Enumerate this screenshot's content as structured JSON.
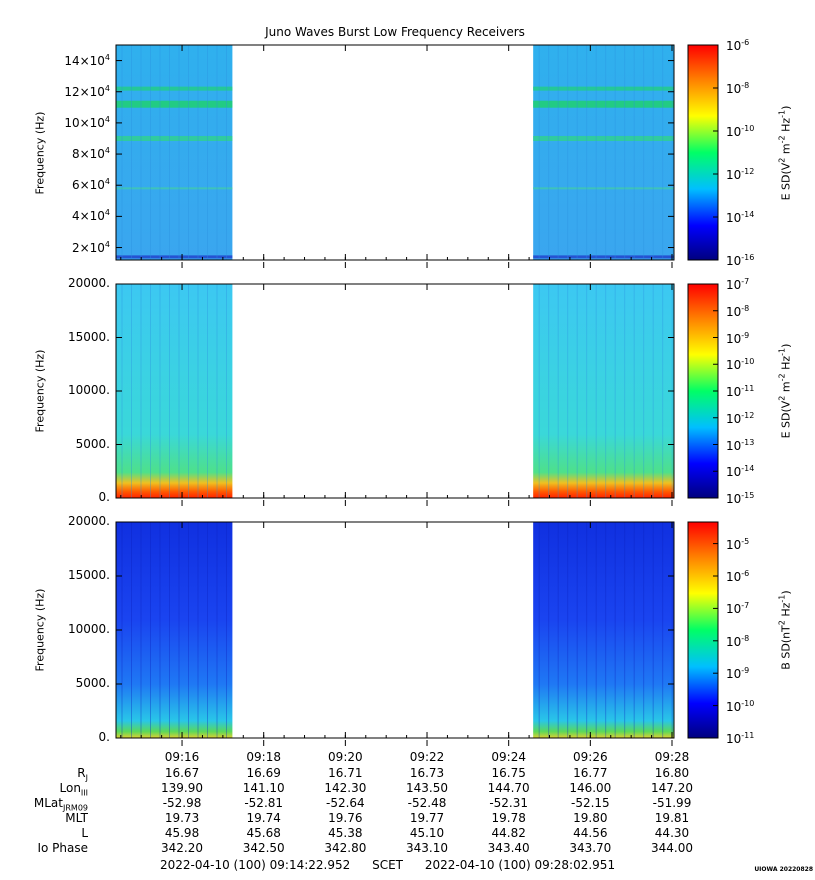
{
  "title": "Juno Waves Burst Low Frequency Receivers",
  "panels": [
    {
      "id": "panel-1",
      "ylabel": "Frequency (Hz)",
      "yticks": [
        {
          "mant": "2×10",
          "exp": "4",
          "v": 20000
        },
        {
          "mant": "4×10",
          "exp": "4",
          "v": 40000
        },
        {
          "mant": "6×10",
          "exp": "4",
          "v": 60000
        },
        {
          "mant": "8×10",
          "exp": "4",
          "v": 80000
        },
        {
          "mant": "10×10",
          "exp": "4",
          "v": 100000
        },
        {
          "mant": "12×10",
          "exp": "4",
          "v": 120000
        },
        {
          "mant": "14×10",
          "exp": "4",
          "v": 140000
        }
      ],
      "ylim": [
        12000,
        150000
      ],
      "colorbar": {
        "label": "E SD(V",
        "label_sup1": "2",
        "label_mid": " m",
        "label_sup2": "-2",
        "label_mid2": " Hz",
        "label_sup3": "-1",
        "label_end": ")",
        "ticks": [
          {
            "base": "10",
            "exp": "-6",
            "frac": 0.0
          },
          {
            "base": "10",
            "exp": "-8",
            "frac": 0.2
          },
          {
            "base": "10",
            "exp": "-10",
            "frac": 0.4
          },
          {
            "base": "10",
            "exp": "-12",
            "frac": 0.6
          },
          {
            "base": "10",
            "exp": "-14",
            "frac": 0.8
          },
          {
            "base": "10",
            "exp": "-16",
            "frac": 1.0
          }
        ]
      }
    },
    {
      "id": "panel-2",
      "ylabel": "Frequency (Hz)",
      "yticks": [
        {
          "label": "0.",
          "v": 0
        },
        {
          "label": "5000.",
          "v": 5000
        },
        {
          "label": "10000.",
          "v": 10000
        },
        {
          "label": "15000.",
          "v": 15000
        },
        {
          "label": "20000.",
          "v": 20000
        }
      ],
      "ylim": [
        0,
        20000
      ],
      "colorbar": {
        "label": "E SD(V",
        "label_sup1": "2",
        "label_mid": " m",
        "label_sup2": "-2",
        "label_mid2": " Hz",
        "label_sup3": "-1",
        "label_end": ")",
        "ticks": [
          {
            "base": "10",
            "exp": "-7",
            "frac": 0.0
          },
          {
            "base": "10",
            "exp": "-8",
            "frac": 0.125
          },
          {
            "base": "10",
            "exp": "-9",
            "frac": 0.25
          },
          {
            "base": "10",
            "exp": "-10",
            "frac": 0.375
          },
          {
            "base": "10",
            "exp": "-11",
            "frac": 0.5
          },
          {
            "base": "10",
            "exp": "-12",
            "frac": 0.625
          },
          {
            "base": "10",
            "exp": "-13",
            "frac": 0.75
          },
          {
            "base": "10",
            "exp": "-14",
            "frac": 0.875
          },
          {
            "base": "10",
            "exp": "-15",
            "frac": 1.0
          }
        ]
      }
    },
    {
      "id": "panel-3",
      "ylabel": "Frequency (Hz)",
      "yticks": [
        {
          "label": "0.",
          "v": 0
        },
        {
          "label": "5000.",
          "v": 5000
        },
        {
          "label": "10000.",
          "v": 10000
        },
        {
          "label": "15000.",
          "v": 15000
        },
        {
          "label": "20000.",
          "v": 20000
        }
      ],
      "ylim": [
        0,
        20000
      ],
      "colorbar": {
        "label": "B SD(nT",
        "label_sup1": "2",
        "label_mid": " Hz",
        "label_sup2": "-1",
        "label_mid2": "",
        "label_sup3": "",
        "label_end": ")",
        "ticks": [
          {
            "base": "10",
            "exp": "-5",
            "frac": 0.1
          },
          {
            "base": "10",
            "exp": "-6",
            "frac": 0.25
          },
          {
            "base": "10",
            "exp": "-7",
            "frac": 0.4
          },
          {
            "base": "10",
            "exp": "-8",
            "frac": 0.55
          },
          {
            "base": "10",
            "exp": "-9",
            "frac": 0.7
          },
          {
            "base": "10",
            "exp": "-10",
            "frac": 0.85
          },
          {
            "base": "10",
            "exp": "-11",
            "frac": 1.0
          }
        ]
      }
    }
  ],
  "chart_data": {
    "type": "heatmap",
    "title": "Juno Waves Burst Low Frequency Receivers",
    "ylabel": "Frequency (Hz)",
    "time_start": "09:14:22.952",
    "time_end": "09:28:02.951",
    "xticks": [
      "09:16",
      "09:18",
      "09:20",
      "09:22",
      "09:24",
      "09:26",
      "09:28"
    ],
    "data_intervals": [
      [
        "09:14:22.952",
        "09:17:14"
      ],
      [
        "09:24:36",
        "09:28:02.951"
      ]
    ],
    "colormap": [
      "#00007f",
      "#0000ff",
      "#00bfff",
      "#00ff66",
      "#ffff00",
      "#ff7f00",
      "#ff0000"
    ]
  },
  "ephemeris": {
    "labels": [
      {
        "name": "R",
        "sub": "J"
      },
      {
        "name": "Lon",
        "sub": "III"
      },
      {
        "name": "MLat",
        "sub": "JRM09"
      },
      {
        "name": "MLT",
        "sub": ""
      },
      {
        "name": "L",
        "sub": ""
      },
      {
        "name": "Io Phase",
        "sub": ""
      }
    ],
    "columns": [
      {
        "time": "09:16",
        "vals": [
          "16.67",
          "139.90",
          "-52.98",
          "19.73",
          "45.98",
          "342.20"
        ]
      },
      {
        "time": "09:18",
        "vals": [
          "16.69",
          "141.10",
          "-52.81",
          "19.74",
          "45.68",
          "342.50"
        ]
      },
      {
        "time": "09:20",
        "vals": [
          "16.71",
          "142.30",
          "-52.64",
          "19.76",
          "45.38",
          "342.80"
        ]
      },
      {
        "time": "09:22",
        "vals": [
          "16.73",
          "143.50",
          "-52.48",
          "19.77",
          "45.10",
          "343.10"
        ]
      },
      {
        "time": "09:24",
        "vals": [
          "16.75",
          "144.70",
          "-52.31",
          "19.78",
          "44.82",
          "343.40"
        ]
      },
      {
        "time": "09:26",
        "vals": [
          "16.77",
          "146.00",
          "-52.15",
          "19.80",
          "44.56",
          "343.70"
        ]
      },
      {
        "time": "09:28",
        "vals": [
          "16.80",
          "147.20",
          "-51.99",
          "19.81",
          "44.30",
          "344.00"
        ]
      }
    ]
  },
  "footer": {
    "start": "2022-04-10 (100) 09:14:22.952",
    "mid": "SCET",
    "end": "2022-04-10 (100) 09:28:02.951"
  },
  "credit": "UIOWA 20220828"
}
